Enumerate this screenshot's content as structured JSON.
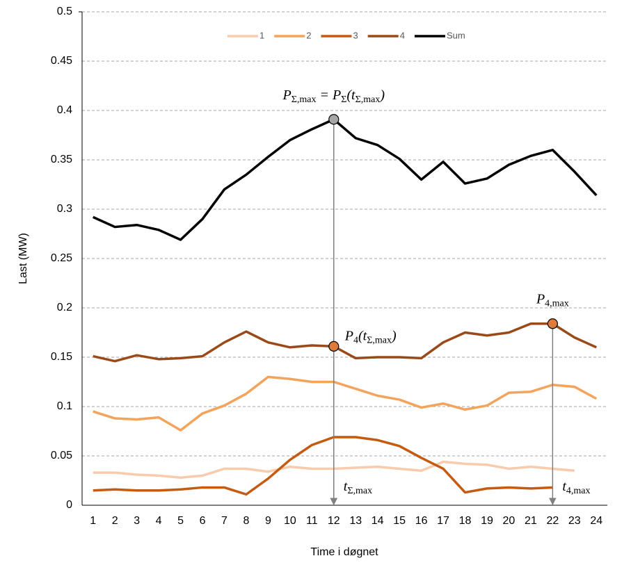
{
  "chart_data": {
    "type": "line",
    "ylabel": "Last (MW)",
    "xlabel": "Time i døgnet",
    "categories": [
      "1",
      "2",
      "3",
      "4",
      "5",
      "6",
      "7",
      "8",
      "9",
      "10",
      "11",
      "12",
      "13",
      "14",
      "15",
      "16",
      "17",
      "18",
      "19",
      "20",
      "21",
      "22",
      "23",
      "24"
    ],
    "series": [
      {
        "name": "1",
        "color": "#f8cbad",
        "values": [
          0.033,
          0.033,
          0.031,
          0.03,
          0.028,
          0.03,
          0.037,
          0.037,
          0.034,
          0.039,
          0.037,
          0.037,
          0.038,
          0.039,
          0.037,
          0.035,
          0.044,
          0.042,
          0.041,
          0.037,
          0.039,
          0.037,
          0.035,
          null
        ]
      },
      {
        "name": "2",
        "color": "#f4a35a",
        "values": [
          0.095,
          0.088,
          0.087,
          0.089,
          0.076,
          0.093,
          0.101,
          0.113,
          0.13,
          0.128,
          0.125,
          0.125,
          0.118,
          0.111,
          0.107,
          0.099,
          0.103,
          0.097,
          0.101,
          0.114,
          0.115,
          0.122,
          0.12,
          0.108
        ]
      },
      {
        "name": "3",
        "color": "#c55a11",
        "values": [
          0.015,
          0.016,
          0.015,
          0.015,
          0.016,
          0.018,
          0.018,
          0.011,
          0.027,
          0.046,
          0.061,
          0.069,
          0.069,
          0.066,
          0.06,
          0.048,
          0.037,
          0.013,
          0.017,
          0.018,
          0.017,
          0.018,
          null,
          null
        ]
      },
      {
        "name": "4",
        "color": "#994a18",
        "values": [
          0.151,
          0.146,
          0.152,
          0.148,
          0.149,
          0.151,
          0.165,
          0.176,
          0.165,
          0.16,
          0.162,
          0.161,
          0.149,
          0.15,
          0.15,
          0.149,
          0.165,
          0.175,
          0.172,
          0.175,
          0.184,
          0.184,
          0.17,
          0.16
        ]
      },
      {
        "name": "Sum",
        "color": "#000000",
        "values": [
          0.292,
          0.282,
          0.284,
          0.279,
          0.269,
          0.29,
          0.32,
          0.335,
          0.353,
          0.37,
          0.381,
          0.391,
          0.372,
          0.365,
          0.351,
          0.33,
          0.348,
          0.326,
          0.331,
          0.345,
          0.354,
          0.36,
          0.338,
          0.314
        ]
      }
    ],
    "ylim": [
      0,
      0.5
    ],
    "yticks": [
      0,
      0.05,
      0.1,
      0.15,
      0.2,
      0.25,
      0.3,
      0.35,
      0.4,
      0.45,
      0.5
    ],
    "grid": true,
    "legend": "top",
    "annotations": [
      {
        "series": "Sum",
        "category": "12",
        "marker_color": "#a6a6a6",
        "anchor": "above",
        "label": [
          {
            "t": "P"
          },
          {
            "sub": "Σ,max"
          },
          {
            "t": " = P"
          },
          {
            "sub": "Σ"
          },
          {
            "t": "(t"
          },
          {
            "sub": "Σ,max"
          },
          {
            "t": ")"
          }
        ],
        "end_label": [
          {
            "t": "t"
          },
          {
            "sub": "Σ,max"
          }
        ]
      },
      {
        "series": "4",
        "category": "12",
        "marker_color": "#e07b39",
        "anchor": "right",
        "label": [
          {
            "t": "P"
          },
          {
            "sub": "4"
          },
          {
            "t": "(t"
          },
          {
            "sub": "Σ,max"
          },
          {
            "t": ")"
          }
        ]
      },
      {
        "series": "4",
        "category": "22",
        "marker_color": "#e07b39",
        "anchor": "above",
        "label": [
          {
            "t": "P"
          },
          {
            "sub": "4,max"
          }
        ],
        "end_label": [
          {
            "t": "t"
          },
          {
            "sub": "4,max"
          }
        ]
      }
    ]
  }
}
